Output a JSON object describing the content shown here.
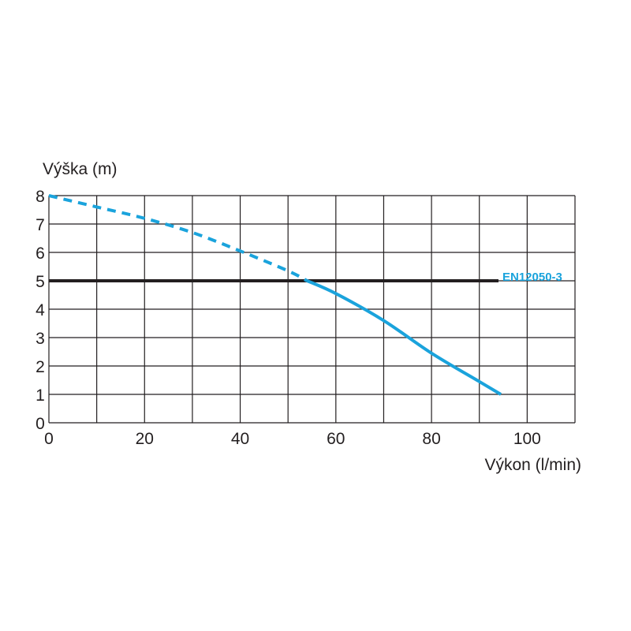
{
  "chart_data": {
    "type": "line",
    "ylabel": "Výška (m)",
    "xlabel": "Výkon (l/min)",
    "xlim": [
      0,
      110
    ],
    "ylim": [
      0,
      8
    ],
    "x_ticks": [
      "0",
      "20",
      "40",
      "60",
      "80",
      "100"
    ],
    "y_ticks": [
      "0",
      "1",
      "2",
      "3",
      "4",
      "5",
      "6",
      "7",
      "8"
    ],
    "grid": true,
    "reference_line": {
      "label": "EN12050-3",
      "y": 5,
      "x_start": 0,
      "x_end": 94
    },
    "series": [
      {
        "style": "dashed",
        "points": [
          [
            0,
            8.0
          ],
          [
            10,
            7.6
          ],
          [
            20,
            7.2
          ],
          [
            30,
            6.7
          ],
          [
            40,
            6.05
          ],
          [
            50,
            5.35
          ],
          [
            54,
            5.0
          ]
        ]
      },
      {
        "style": "solid",
        "points": [
          [
            54,
            5.0
          ],
          [
            60,
            4.55
          ],
          [
            70,
            3.6
          ],
          [
            80,
            2.45
          ],
          [
            90,
            1.45
          ],
          [
            94.5,
            1.0
          ]
        ]
      }
    ],
    "colors": {
      "curve": "#1aa3dc",
      "reference": "#231f20",
      "grid": "#231f20"
    }
  }
}
